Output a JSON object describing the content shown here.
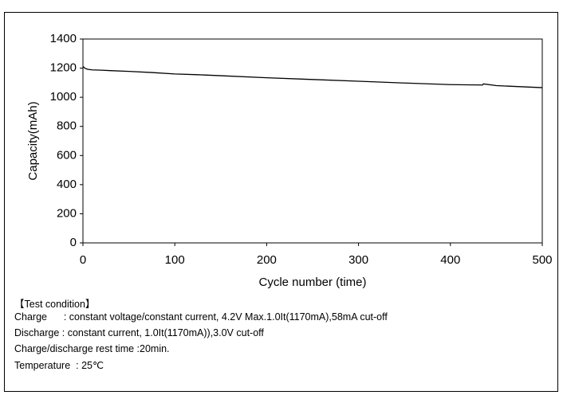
{
  "chart_data": {
    "type": "line",
    "xlabel": "Cycle number (time)",
    "ylabel": "Capacity(mAh)",
    "x": [
      0,
      2,
      5,
      10,
      20,
      30,
      50,
      75,
      100,
      125,
      150,
      200,
      250,
      300,
      350,
      400,
      435,
      436,
      450,
      500
    ],
    "values": [
      1212,
      1200,
      1192,
      1188,
      1186,
      1183,
      1178,
      1170,
      1160,
      1155,
      1148,
      1134,
      1122,
      1110,
      1098,
      1087,
      1084,
      1092,
      1080,
      1066
    ],
    "color": "#000000",
    "xlim": [
      0,
      500
    ],
    "xticks": [
      0,
      100,
      200,
      300,
      400,
      500
    ],
    "ylim": [
      0,
      1400
    ],
    "yticks": [
      0,
      200,
      400,
      600,
      800,
      1000,
      1200,
      1400
    ],
    "grid": false
  },
  "test_condition": {
    "heading": "【Test condition】",
    "lines": [
      "Charge      : constant voltage/constant current, 4.2V Max.1.0It(1170mA),58mA cut-off",
      "Discharge : constant current, 1.0It(1170mA)),3.0V cut-off",
      "Charge/discharge rest time :20min.",
      "Temperature  : 25℃"
    ]
  }
}
